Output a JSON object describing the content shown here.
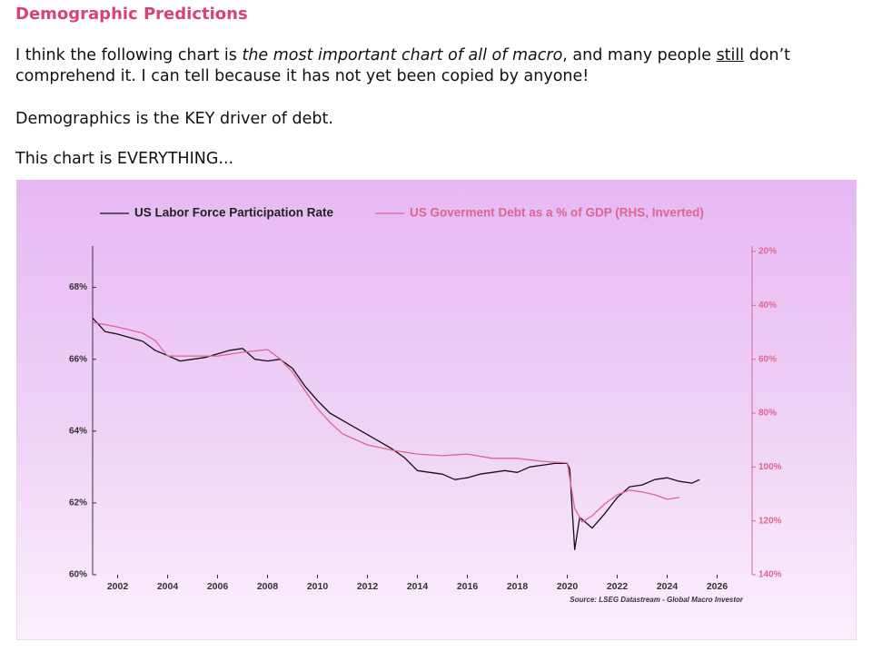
{
  "heading": "Demographic Predictions",
  "paragraphs": [
    [
      "I think the following chart is ",
      "the most important chart of all of macro",
      ", and many people ",
      "still",
      " don’t comprehend it. I can tell because it has not yet been copied by anyone!"
    ],
    [
      "Demographics is the KEY driver of debt."
    ],
    [
      "This chart is EVERYTHING..."
    ]
  ],
  "chart_data": {
    "type": "line",
    "source": "Source: LSEG Datastream - Global Macro Investor",
    "xlim": [
      2001,
      2027.4
    ],
    "xticks": [
      2002,
      2004,
      2006,
      2008,
      2010,
      2012,
      2014,
      2016,
      2018,
      2020,
      2022,
      2024,
      2026
    ],
    "ylim": [
      60,
      69
    ],
    "yticks": [
      {
        "value": 60,
        "label": "60%"
      },
      {
        "value": 62,
        "label": "62%"
      },
      {
        "value": 64,
        "label": "64%"
      },
      {
        "value": 66,
        "label": "66%"
      },
      {
        "value": 68,
        "label": "68%"
      }
    ],
    "y2lim": [
      140,
      20
    ],
    "y2ticks": [
      {
        "value": 20,
        "label": "20%"
      },
      {
        "value": 40,
        "label": "40%"
      },
      {
        "value": 60,
        "label": "60%"
      },
      {
        "value": 80,
        "label": "80%"
      },
      {
        "value": 100,
        "label": "100%"
      },
      {
        "value": 120,
        "label": "120%"
      },
      {
        "value": 140,
        "label": "140%"
      }
    ],
    "series": [
      {
        "name": "US Labor Force Participation Rate",
        "color": "#111111",
        "x": [
          2001,
          2001.5,
          2002,
          2002.5,
          2003,
          2003.5,
          2004,
          2004.5,
          2005,
          2005.5,
          2006,
          2006.5,
          2007,
          2007.5,
          2008,
          2008.5,
          2009,
          2009.5,
          2010,
          2010.5,
          2011,
          2011.5,
          2012,
          2012.5,
          2013,
          2013.5,
          2014,
          2014.5,
          2015,
          2015.5,
          2016,
          2016.5,
          2017,
          2017.5,
          2018,
          2018.5,
          2019,
          2019.5,
          2020,
          2020.1,
          2020.3,
          2020.5,
          2021,
          2021.5,
          2022,
          2022.5,
          2023,
          2023.5,
          2024,
          2024.5,
          2025,
          2025.3
        ],
        "values": [
          67.15,
          66.77,
          66.7,
          66.6,
          66.5,
          66.25,
          66.1,
          65.95,
          66.0,
          66.05,
          66.15,
          66.25,
          66.3,
          66.0,
          65.95,
          66.0,
          65.75,
          65.25,
          64.85,
          64.5,
          64.3,
          64.1,
          63.9,
          63.7,
          63.5,
          63.25,
          62.9,
          62.85,
          62.8,
          62.65,
          62.7,
          62.8,
          62.85,
          62.9,
          62.85,
          63.0,
          63.05,
          63.1,
          63.1,
          62.95,
          60.7,
          61.6,
          61.3,
          61.7,
          62.15,
          62.45,
          62.5,
          62.65,
          62.7,
          62.6,
          62.55,
          62.65
        ]
      },
      {
        "name": "US Goverment Debt as a % of GDP (RHS, Inverted)",
        "color": "#e0648f",
        "axis": "y2",
        "x": [
          2001,
          2002,
          2003,
          2003.5,
          2004,
          2005,
          2006,
          2007,
          2008,
          2008.5,
          2009,
          2009.5,
          2010,
          2010.5,
          2011,
          2012,
          2013,
          2014,
          2015,
          2016,
          2017,
          2018,
          2019,
          2020,
          2020.3,
          2020.6,
          2021,
          2021.5,
          2022,
          2022.5,
          2023,
          2023.5,
          2024,
          2024.5
        ],
        "values": [
          46.3,
          48,
          50.3,
          53,
          58.8,
          58.8,
          58.8,
          57.4,
          56.4,
          59.8,
          64.8,
          71.6,
          78.3,
          83.4,
          87.7,
          91.8,
          93.8,
          95.2,
          95.8,
          95.2,
          96.8,
          96.8,
          97.9,
          98.5,
          115.4,
          120.4,
          118.1,
          113.7,
          110.3,
          108.6,
          109.3,
          110.3,
          112,
          111.3
        ]
      }
    ]
  }
}
